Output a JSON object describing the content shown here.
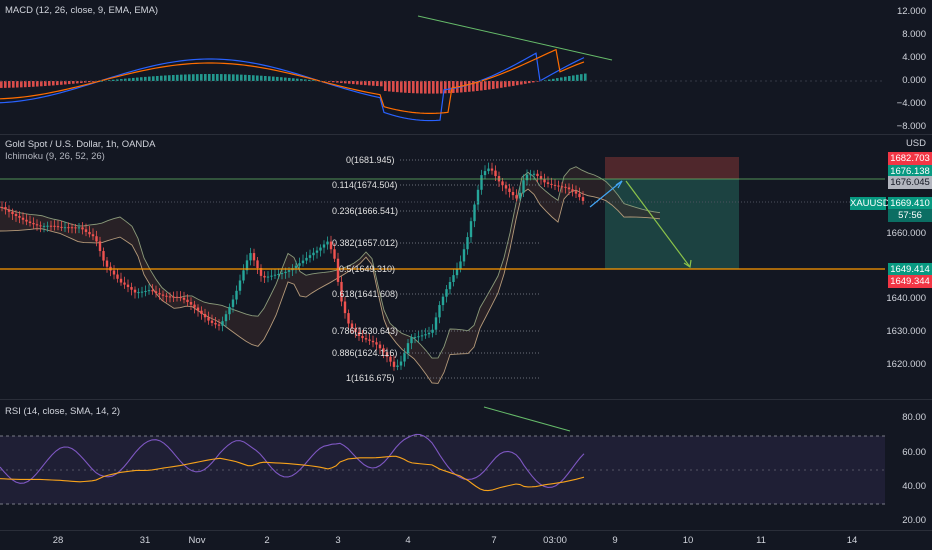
{
  "macd": {
    "label": "MACD (12, 26, close, 9, EMA, EMA)",
    "axis": [
      "12.000",
      "8.000",
      "4.000",
      "0.000",
      "−4.000",
      "−8.000"
    ]
  },
  "main": {
    "title": "Gold Spot / U.S. Dollar, 1h, OANDA",
    "indicator": "Ichimoku (9, 26, 52, 26)",
    "currency": "USD",
    "axis": [
      "1660.000",
      "1640.000",
      "1630.000",
      "1620.000"
    ],
    "fib": [
      "0(1681.945)",
      "0.114(1674.504)",
      "0.236(1666.541)",
      "0.382(1657.012)",
      "0.5(1649.310)",
      "0.618(1641.608)",
      "0.786(1630.643)",
      "0.886(1624.116)",
      "1(1616.675)"
    ],
    "tags": {
      "stop": "1682.703",
      "entry1": "1676.138",
      "entry2": "1676.045",
      "symbol": "XAUUSD",
      "price": "1669.410",
      "countdown": "57:56",
      "target": "1649.414",
      "target2": "1649.344"
    },
    "colors": {
      "up": "#26a69a",
      "down": "#ef5350",
      "stop_zone": "#5b2a2e",
      "target_zone": "#1e4a46"
    }
  },
  "rsi": {
    "label": "RSI (14, close, SMA, 14, 2)",
    "axis": [
      "80.00",
      "60.00",
      "40.00",
      "20.00"
    ]
  },
  "time_axis": [
    "28",
    "31",
    "Nov",
    "2",
    "3",
    "4",
    "7",
    "03:00",
    "9",
    "10",
    "11",
    "14"
  ]
}
